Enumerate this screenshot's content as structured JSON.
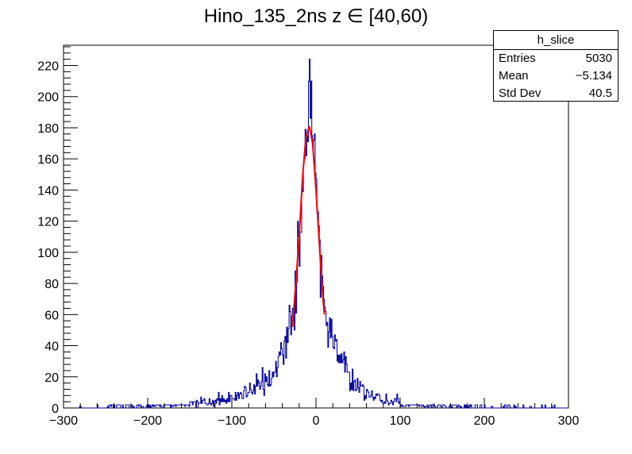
{
  "title": "Hino_135_2ns z  ∈ [40,60)",
  "stats": {
    "name": "h_slice",
    "rows": [
      {
        "label": "Entries",
        "value": "5030"
      },
      {
        "label": "Mean",
        "value": "−5.134"
      },
      {
        "label": "Std Dev",
        "value": "40.5"
      }
    ]
  },
  "chart_data": {
    "type": "histogram",
    "title": "Hino_135_2ns z  ∈ [40,60)",
    "xlim": [
      -300,
      300
    ],
    "ylim": [
      0,
      233
    ],
    "xticks": [
      -300,
      -200,
      -100,
      0,
      100,
      200,
      300
    ],
    "yticks": [
      0,
      20,
      40,
      60,
      80,
      100,
      120,
      140,
      160,
      180,
      200,
      220
    ],
    "histogram": {
      "name": "h_slice",
      "color": "#000099",
      "bin_width": 1,
      "envelope_points": [
        {
          "x": -300,
          "y": 0
        },
        {
          "x": -250,
          "y": 1
        },
        {
          "x": -200,
          "y": 2
        },
        {
          "x": -150,
          "y": 3
        },
        {
          "x": -120,
          "y": 4
        },
        {
          "x": -100,
          "y": 6
        },
        {
          "x": -80,
          "y": 10
        },
        {
          "x": -60,
          "y": 17
        },
        {
          "x": -45,
          "y": 28
        },
        {
          "x": -35,
          "y": 45
        },
        {
          "x": -25,
          "y": 70
        },
        {
          "x": -20,
          "y": 95
        },
        {
          "x": -15,
          "y": 140
        },
        {
          "x": -10,
          "y": 185
        },
        {
          "x": -8,
          "y": 210
        },
        {
          "x": -5,
          "y": 195
        },
        {
          "x": 0,
          "y": 150
        },
        {
          "x": 5,
          "y": 95
        },
        {
          "x": 10,
          "y": 65
        },
        {
          "x": 20,
          "y": 42
        },
        {
          "x": 30,
          "y": 30
        },
        {
          "x": 45,
          "y": 18
        },
        {
          "x": 60,
          "y": 10
        },
        {
          "x": 80,
          "y": 5
        },
        {
          "x": 100,
          "y": 3
        },
        {
          "x": 150,
          "y": 2
        },
        {
          "x": 200,
          "y": 1
        },
        {
          "x": 300,
          "y": 0
        }
      ]
    },
    "fit": {
      "color": "#ff0000",
      "x_range": [
        -28,
        10
      ],
      "points": [
        {
          "x": -28,
          "y": 52
        },
        {
          "x": -24,
          "y": 80
        },
        {
          "x": -20,
          "y": 110
        },
        {
          "x": -16,
          "y": 148
        },
        {
          "x": -12,
          "y": 174
        },
        {
          "x": -8,
          "y": 181
        },
        {
          "x": -4,
          "y": 170
        },
        {
          "x": 0,
          "y": 140
        },
        {
          "x": 4,
          "y": 105
        },
        {
          "x": 8,
          "y": 72
        },
        {
          "x": 10,
          "y": 60
        }
      ]
    }
  }
}
